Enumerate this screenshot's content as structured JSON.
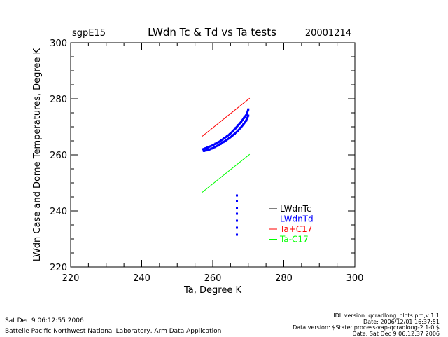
{
  "header": {
    "site": "sgpE15",
    "date": "20001214"
  },
  "footer": {
    "left_timestamp": "Sat Dec  9 06:12:55 2006",
    "left_org": "Battelle Pacific Northwest National Laboratory, Arm Data Application",
    "right_lines": [
      "IDL version: qcradlong_plots.pro,v 1.1",
      "Date: 2006/12/01 16:37:51",
      "Data version: $State: process-vap-qcradlong-2.1-0 $",
      "Date: Sat Dec  9 06:12:37 2006"
    ]
  },
  "colors": {
    "axis": "#000000",
    "lwdntc": "#000000",
    "lwdntd": "#0000ff",
    "ta_plus": "#ff0000",
    "ta_minus": "#00ff00"
  },
  "chart_data": {
    "type": "scatter",
    "title": "LWdn Tc & Td vs Ta tests",
    "xlabel": "Ta, Degree K",
    "ylabel": "LWdn Case and Dome Temperatures, Degree K",
    "xlim": [
      220,
      300
    ],
    "ylim": [
      220,
      300
    ],
    "xticks": [
      220,
      240,
      260,
      280,
      300
    ],
    "yticks": [
      220,
      240,
      260,
      280,
      300
    ],
    "legend_position": "lower-right",
    "series": [
      {
        "name": "LWdnTc",
        "color": "#000000",
        "style": "points",
        "x": [],
        "y": []
      },
      {
        "name": "LWdnTd",
        "color": "#0000ff",
        "style": "points",
        "x": [
          257.2,
          257.8,
          258.5,
          259.2,
          260.0,
          260.8,
          261.6,
          262.4,
          263.2,
          264.0,
          264.8,
          265.6,
          266.4,
          267.2,
          268.0,
          268.8,
          269.6,
          270.0,
          257.5,
          258.2,
          259.0,
          259.8,
          260.6,
          261.4,
          262.2,
          263.0,
          263.8,
          264.6,
          265.4,
          266.2,
          267.0,
          267.8,
          268.6,
          269.4,
          270.0,
          266.8,
          266.8,
          266.8,
          266.8,
          266.8,
          266.8,
          266.8
        ],
        "y": [
          262.0,
          262.3,
          262.6,
          263.0,
          263.4,
          264.0,
          264.5,
          265.2,
          265.9,
          266.6,
          267.4,
          268.4,
          269.5,
          270.6,
          271.8,
          273.2,
          274.6,
          276.2,
          261.4,
          261.6,
          261.9,
          262.3,
          262.8,
          263.3,
          263.9,
          264.6,
          265.2,
          265.9,
          266.7,
          267.6,
          268.5,
          269.6,
          270.8,
          272.2,
          274.0,
          245.5,
          243.5,
          241.0,
          239.0,
          236.5,
          234.0,
          231.5
        ]
      },
      {
        "name": "Ta+C17",
        "color": "#ff0000",
        "style": "line",
        "x": [
          257.0,
          270.4
        ],
        "y": [
          266.6,
          280.2
        ]
      },
      {
        "name": "Ta-C17",
        "color": "#00ff00",
        "style": "line",
        "x": [
          257.0,
          270.4
        ],
        "y": [
          246.6,
          260.2
        ]
      }
    ]
  }
}
